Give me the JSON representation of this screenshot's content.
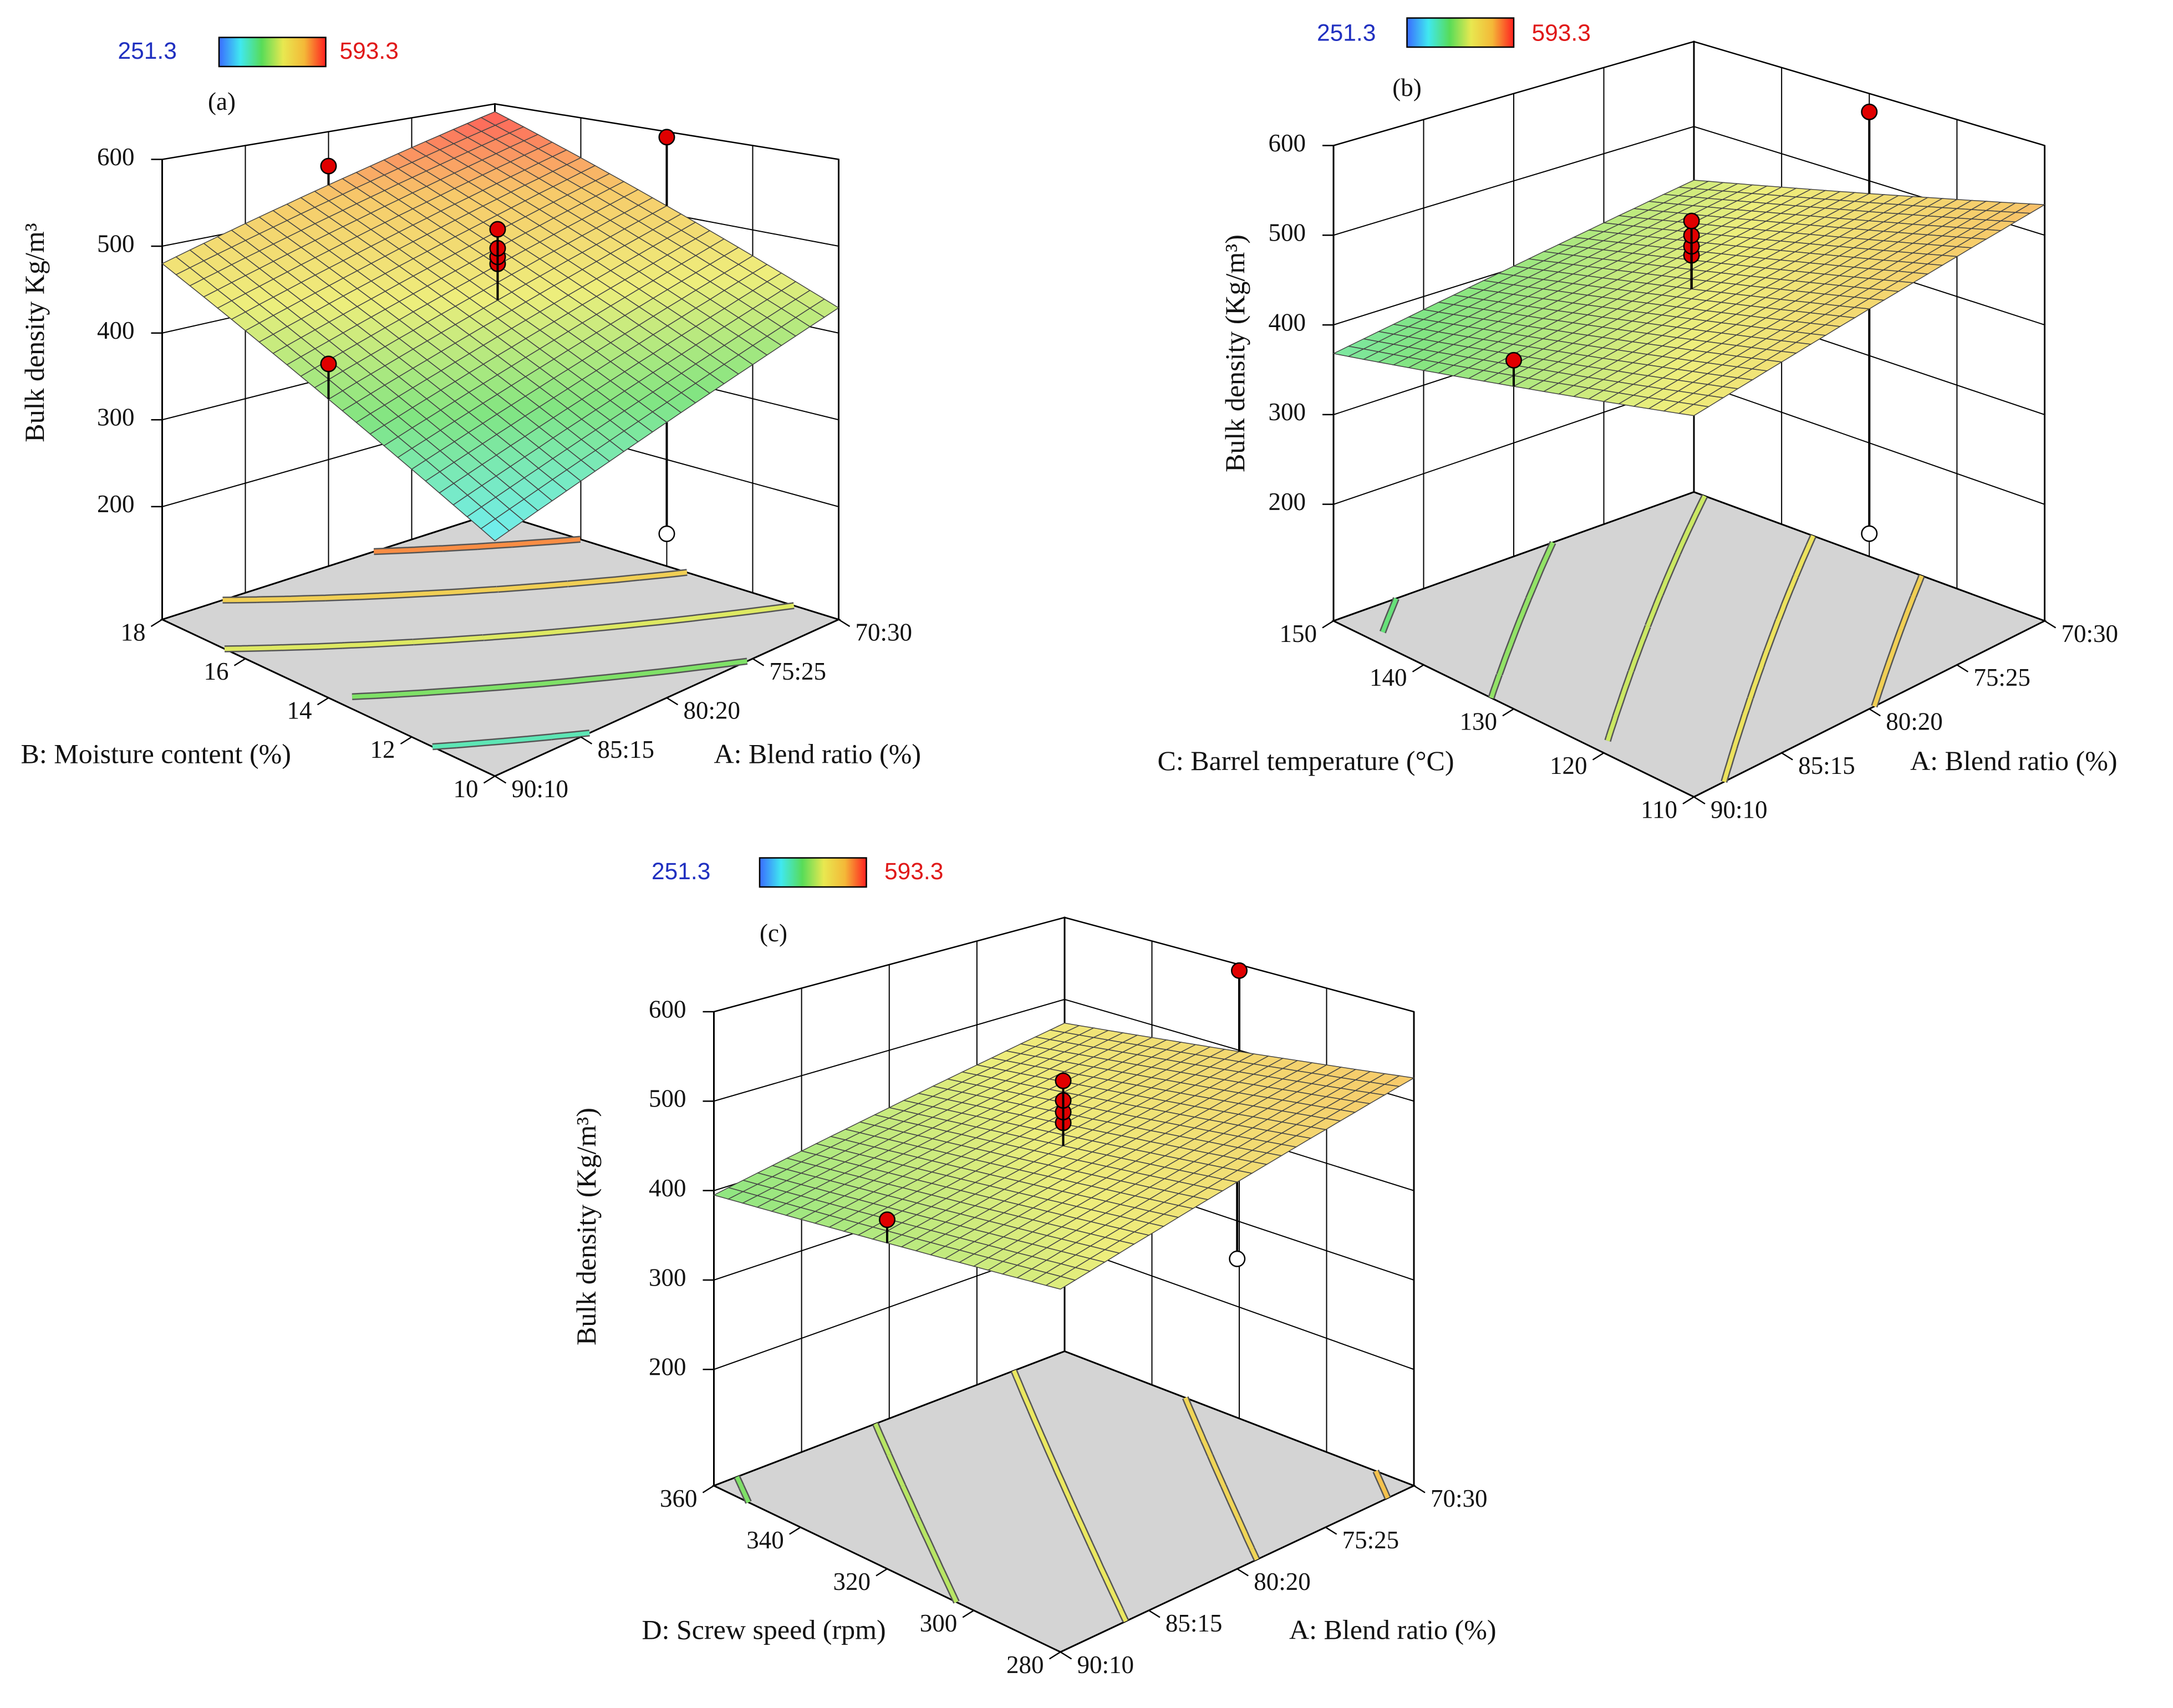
{
  "chart_data": [
    {
      "type": "surface3d",
      "panel_label": "(a)",
      "zlabel": "Bulk density Kg/m³",
      "xlabel": "A: Blend ratio (%)",
      "ylabel": "B: Moisture content (%)",
      "xlim": [
        90,
        70
      ],
      "xticks": [
        {
          "value": 90,
          "label": "90:10"
        },
        {
          "value": 85,
          "label": "85:15"
        },
        {
          "value": 80,
          "label": "80:20"
        },
        {
          "value": 75,
          "label": "75:25"
        },
        {
          "value": 70,
          "label": "70:30"
        }
      ],
      "ylim": [
        10,
        18
      ],
      "yticks": [
        10,
        12,
        14,
        16,
        18
      ],
      "zlim": [
        70,
        600
      ],
      "zticks": [
        200,
        300,
        400,
        500,
        600
      ],
      "colorbar": {
        "min": 251.3,
        "max": 593.3,
        "colors": [
          "#3a6cff",
          "#40e8f0",
          "#58dc58",
          "#e8e850",
          "#f4b838",
          "#ff2020"
        ]
      },
      "surface_z": [
        [
          320,
          480
        ],
        [
          429,
          590
        ]
      ],
      "contour_levels": [
        350,
        400,
        450,
        500,
        550
      ],
      "points": {
        "x": [
          80,
          90,
          70,
          80,
          80,
          80,
          80,
          80
        ],
        "y": [
          18,
          14,
          14,
          10,
          14,
          14,
          14,
          14
        ],
        "z": [
          558,
          439,
          593.3,
          251.3,
          497,
          505,
          515,
          537
        ]
      }
    },
    {
      "type": "surface3d",
      "panel_label": "(b)",
      "zlabel": "Bulk density (Kg/m³)",
      "xlabel": "A: Blend ratio (%)",
      "ylabel": "C: Barrel temperature (°C)",
      "xlim": [
        90,
        70
      ],
      "xticks": [
        {
          "value": 90,
          "label": "90:10"
        },
        {
          "value": 85,
          "label": "85:15"
        },
        {
          "value": 80,
          "label": "80:20"
        },
        {
          "value": 75,
          "label": "75:25"
        },
        {
          "value": 70,
          "label": "70:30"
        }
      ],
      "ylim": [
        110,
        150
      ],
      "yticks": [
        110,
        120,
        130,
        140,
        150
      ],
      "zlim": [
        70,
        600
      ],
      "zticks": [
        200,
        300,
        400,
        500,
        600
      ],
      "colorbar": {
        "min": 251.3,
        "max": 593.3,
        "colors": [
          "#3a6cff",
          "#40e8f0",
          "#58dc58",
          "#e8e850",
          "#f4b838",
          "#ff2020"
        ]
      },
      "surface_z": [
        [
          464,
          368
        ],
        [
          534,
          437
        ]
      ],
      "contour_levels": [
        380,
        410,
        440,
        470,
        500
      ],
      "points": {
        "x": [
          90,
          70,
          80,
          80,
          80,
          80,
          80
        ],
        "y": [
          130,
          130,
          110,
          130,
          130,
          130,
          130
        ],
        "z": [
          444,
          579,
          258,
          488,
          498,
          510,
          526
        ]
      }
    },
    {
      "type": "surface3d",
      "panel_label": "(c)",
      "zlabel": "Bulk density (Kg/m³)",
      "xlabel": "A: Blend ratio (%)",
      "ylabel": "D: Screw speed (rpm)",
      "xlim": [
        90,
        70
      ],
      "xticks": [
        {
          "value": 90,
          "label": "90:10"
        },
        {
          "value": 85,
          "label": "85:15"
        },
        {
          "value": 80,
          "label": "80:20"
        },
        {
          "value": 75,
          "label": "75:25"
        },
        {
          "value": 70,
          "label": "70:30"
        }
      ],
      "ylim": [
        280,
        360
      ],
      "yticks": [
        280,
        300,
        320,
        340,
        360
      ],
      "zlim": [
        70,
        600
      ],
      "zticks": [
        200,
        300,
        400,
        500,
        600
      ],
      "colorbar": {
        "min": 251.3,
        "max": 593.3,
        "colors": [
          "#3a6cff",
          "#40e8f0",
          "#58dc58",
          "#e8e850",
          "#f4b838",
          "#ff2020"
        ]
      },
      "surface_z": [
        [
          445,
          395
        ],
        [
          526,
          471
        ]
      ],
      "contour_levels": [
        400,
        430,
        460,
        490,
        520
      ],
      "points": {
        "x": [
          90,
          70,
          80,
          80,
          80,
          80,
          80
        ],
        "y": [
          320,
          320,
          280,
          320,
          320,
          320,
          320
        ],
        "z": [
          445,
          593,
          403,
          485,
          497,
          510,
          532
        ]
      }
    }
  ]
}
